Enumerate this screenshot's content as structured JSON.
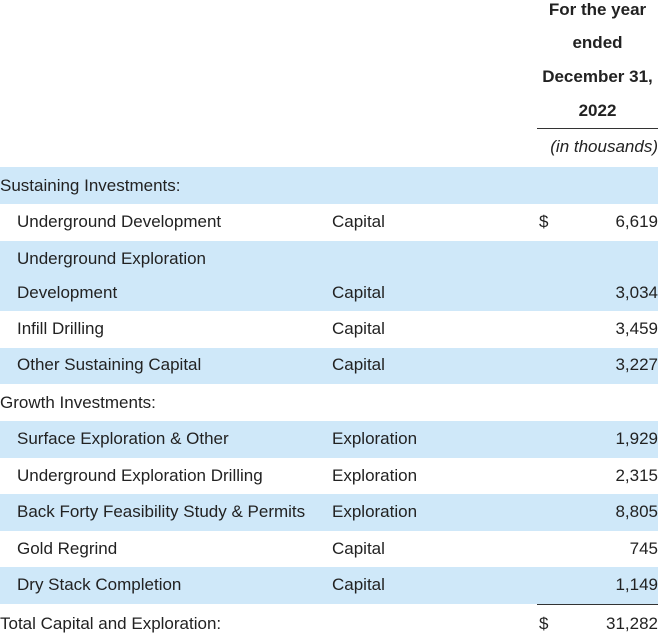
{
  "header": {
    "period_lines": [
      "For the year",
      "ended",
      "December 31,",
      "2022"
    ],
    "units": "(in thousands)"
  },
  "rows": [
    {
      "label": "Sustaining Investments:",
      "type": "",
      "currency": "",
      "amount": ""
    },
    {
      "label": "Underground Development",
      "type": "Capital",
      "currency": "$",
      "amount": "6,619"
    },
    {
      "label": "Underground Exploration",
      "type": "",
      "currency": "",
      "amount": ""
    },
    {
      "label": "Development",
      "type": "Capital",
      "currency": "",
      "amount": "3,034"
    },
    {
      "label": "Infill Drilling",
      "type": "Capital",
      "currency": "",
      "amount": "3,459"
    },
    {
      "label": "Other Sustaining Capital",
      "type": "Capital",
      "currency": "",
      "amount": "3,227"
    },
    {
      "label": "Growth Investments:",
      "type": "",
      "currency": "",
      "amount": ""
    },
    {
      "label": "Surface Exploration & Other",
      "type": "Exploration",
      "currency": "",
      "amount": "1,929"
    },
    {
      "label": "Underground Exploration Drilling",
      "type": "Exploration",
      "currency": "",
      "amount": "2,315"
    },
    {
      "label": "Back Forty Feasibility Study & Permits",
      "type": "Exploration",
      "currency": "",
      "amount": "8,805"
    },
    {
      "label": "Gold Regrind",
      "type": "Capital",
      "currency": "",
      "amount": "745"
    },
    {
      "label": "Dry Stack Completion",
      "type": "Capital",
      "currency": "",
      "amount": "1,149"
    },
    {
      "label": "Total Capital and Exploration:",
      "type": "",
      "currency": "$",
      "amount": "31,282"
    }
  ],
  "colors": {
    "row_shade": "#cfe8f9",
    "text": "#222222",
    "rule": "#333333"
  }
}
